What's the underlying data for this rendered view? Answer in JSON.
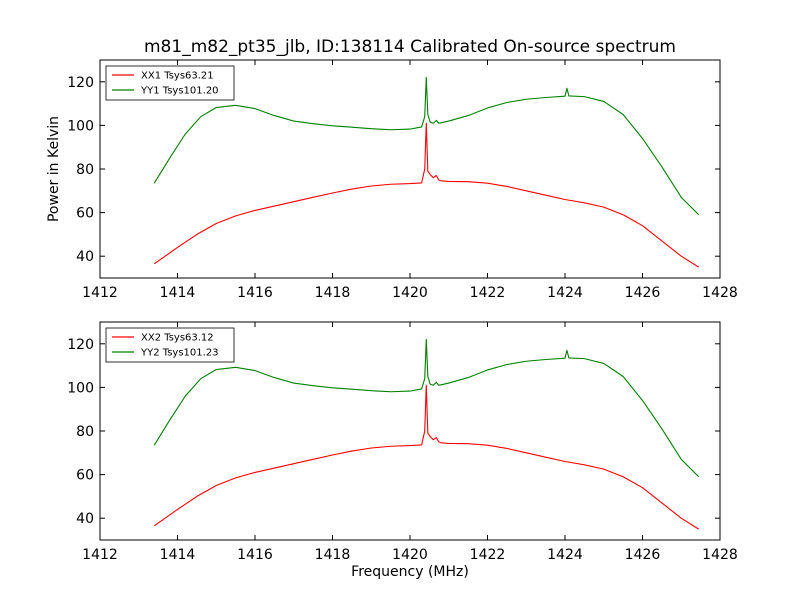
{
  "chart_data": [
    {
      "type": "line",
      "title": "m81_m82_pt35_jlb, ID:138114 Calibrated On-source spectrum",
      "xlabel": "",
      "ylabel": "Power in Kelvin",
      "xlim": [
        1412,
        1428
      ],
      "ylim": [
        30,
        130
      ],
      "xticks": [
        1412,
        1414,
        1416,
        1418,
        1420,
        1422,
        1424,
        1426,
        1428
      ],
      "yticks": [
        40,
        60,
        80,
        100,
        120
      ],
      "legend_position": "top-left",
      "series": [
        {
          "name": "XX1 Tsys63.21",
          "color": "#ff0000",
          "x": [
            1413.4,
            1414.0,
            1414.5,
            1415.0,
            1415.5,
            1416.0,
            1416.5,
            1417.0,
            1417.5,
            1418.0,
            1418.5,
            1419.0,
            1419.5,
            1420.0,
            1420.3,
            1420.38,
            1420.42,
            1420.46,
            1420.52,
            1420.6,
            1420.68,
            1420.74,
            1420.8,
            1421.0,
            1421.5,
            1422.0,
            1422.5,
            1423.0,
            1423.5,
            1424.0,
            1424.5,
            1425.0,
            1425.5,
            1426.0,
            1426.5,
            1427.0,
            1427.45
          ],
          "y": [
            36.5,
            44,
            50,
            55,
            58.5,
            61,
            63,
            65,
            67,
            69,
            70.8,
            72.2,
            73,
            73.3,
            73.6,
            80,
            101,
            79,
            77.5,
            76,
            77,
            75,
            74.6,
            74.3,
            74.2,
            73.5,
            72,
            70,
            68,
            66,
            64.5,
            62.5,
            59,
            54,
            47,
            40,
            35
          ]
        },
        {
          "name": "YY1 Tsys101.20",
          "color": "#008000",
          "x": [
            1413.4,
            1413.8,
            1414.2,
            1414.6,
            1415.0,
            1415.5,
            1416.0,
            1416.5,
            1417.0,
            1417.5,
            1418.0,
            1418.5,
            1419.0,
            1419.5,
            1420.0,
            1420.3,
            1420.38,
            1420.42,
            1420.46,
            1420.52,
            1420.6,
            1420.68,
            1420.74,
            1420.8,
            1421.0,
            1421.5,
            1422.0,
            1422.5,
            1423.0,
            1423.5,
            1424.0,
            1424.05,
            1424.1,
            1424.5,
            1425.0,
            1425.5,
            1426.0,
            1426.5,
            1427.0,
            1427.45
          ],
          "y": [
            73.5,
            85,
            96,
            104,
            108.2,
            109.2,
            107.7,
            104.5,
            102,
            100.8,
            99.8,
            99.2,
            98.5,
            98,
            98.3,
            99.3,
            104,
            122,
            105,
            101.5,
            101,
            102.3,
            101,
            101.2,
            102,
            104.5,
            108,
            110.5,
            112,
            112.8,
            113.4,
            117,
            113.5,
            113.2,
            111,
            105,
            94,
            81,
            67,
            59
          ]
        }
      ]
    },
    {
      "type": "line",
      "title": "",
      "xlabel": "Frequency (MHz)",
      "ylabel": "",
      "xlim": [
        1412,
        1428
      ],
      "ylim": [
        30,
        130
      ],
      "xticks": [
        1412,
        1414,
        1416,
        1418,
        1420,
        1422,
        1424,
        1426,
        1428
      ],
      "yticks": [
        40,
        60,
        80,
        100,
        120
      ],
      "legend_position": "top-left",
      "series": [
        {
          "name": "XX2 Tsys63.12",
          "color": "#ff0000",
          "x": [
            1413.4,
            1414.0,
            1414.5,
            1415.0,
            1415.5,
            1416.0,
            1416.5,
            1417.0,
            1417.5,
            1418.0,
            1418.5,
            1419.0,
            1419.5,
            1420.0,
            1420.3,
            1420.38,
            1420.42,
            1420.46,
            1420.52,
            1420.6,
            1420.68,
            1420.74,
            1420.8,
            1421.0,
            1421.5,
            1422.0,
            1422.5,
            1423.0,
            1423.5,
            1424.0,
            1424.5,
            1425.0,
            1425.5,
            1426.0,
            1426.5,
            1427.0,
            1427.45
          ],
          "y": [
            36.5,
            44,
            50,
            55,
            58.5,
            61,
            63,
            65,
            67,
            69,
            70.8,
            72.2,
            73,
            73.3,
            73.6,
            80,
            101,
            79,
            77.5,
            76,
            77,
            75,
            74.6,
            74.3,
            74.2,
            73.5,
            72,
            70,
            68,
            66,
            64.5,
            62.5,
            59,
            54,
            47,
            40,
            35
          ]
        },
        {
          "name": "YY2 Tsys101.23",
          "color": "#008000",
          "x": [
            1413.4,
            1413.8,
            1414.2,
            1414.6,
            1415.0,
            1415.5,
            1416.0,
            1416.5,
            1417.0,
            1417.5,
            1418.0,
            1418.5,
            1419.0,
            1419.5,
            1420.0,
            1420.3,
            1420.38,
            1420.42,
            1420.46,
            1420.52,
            1420.6,
            1420.68,
            1420.74,
            1420.8,
            1421.0,
            1421.5,
            1422.0,
            1422.5,
            1423.0,
            1423.5,
            1424.0,
            1424.05,
            1424.1,
            1424.5,
            1425.0,
            1425.5,
            1426.0,
            1426.5,
            1427.0,
            1427.45
          ],
          "y": [
            73.5,
            85,
            96,
            104,
            108.2,
            109.2,
            107.7,
            104.5,
            102,
            100.8,
            99.8,
            99.2,
            98.5,
            98,
            98.3,
            99.3,
            104,
            122,
            105,
            101.5,
            101,
            102.3,
            101,
            101.2,
            102,
            104.5,
            108,
            110.5,
            112,
            112.8,
            113.4,
            117,
            113.5,
            113.2,
            111,
            105,
            94,
            81,
            67,
            59
          ]
        }
      ]
    }
  ]
}
